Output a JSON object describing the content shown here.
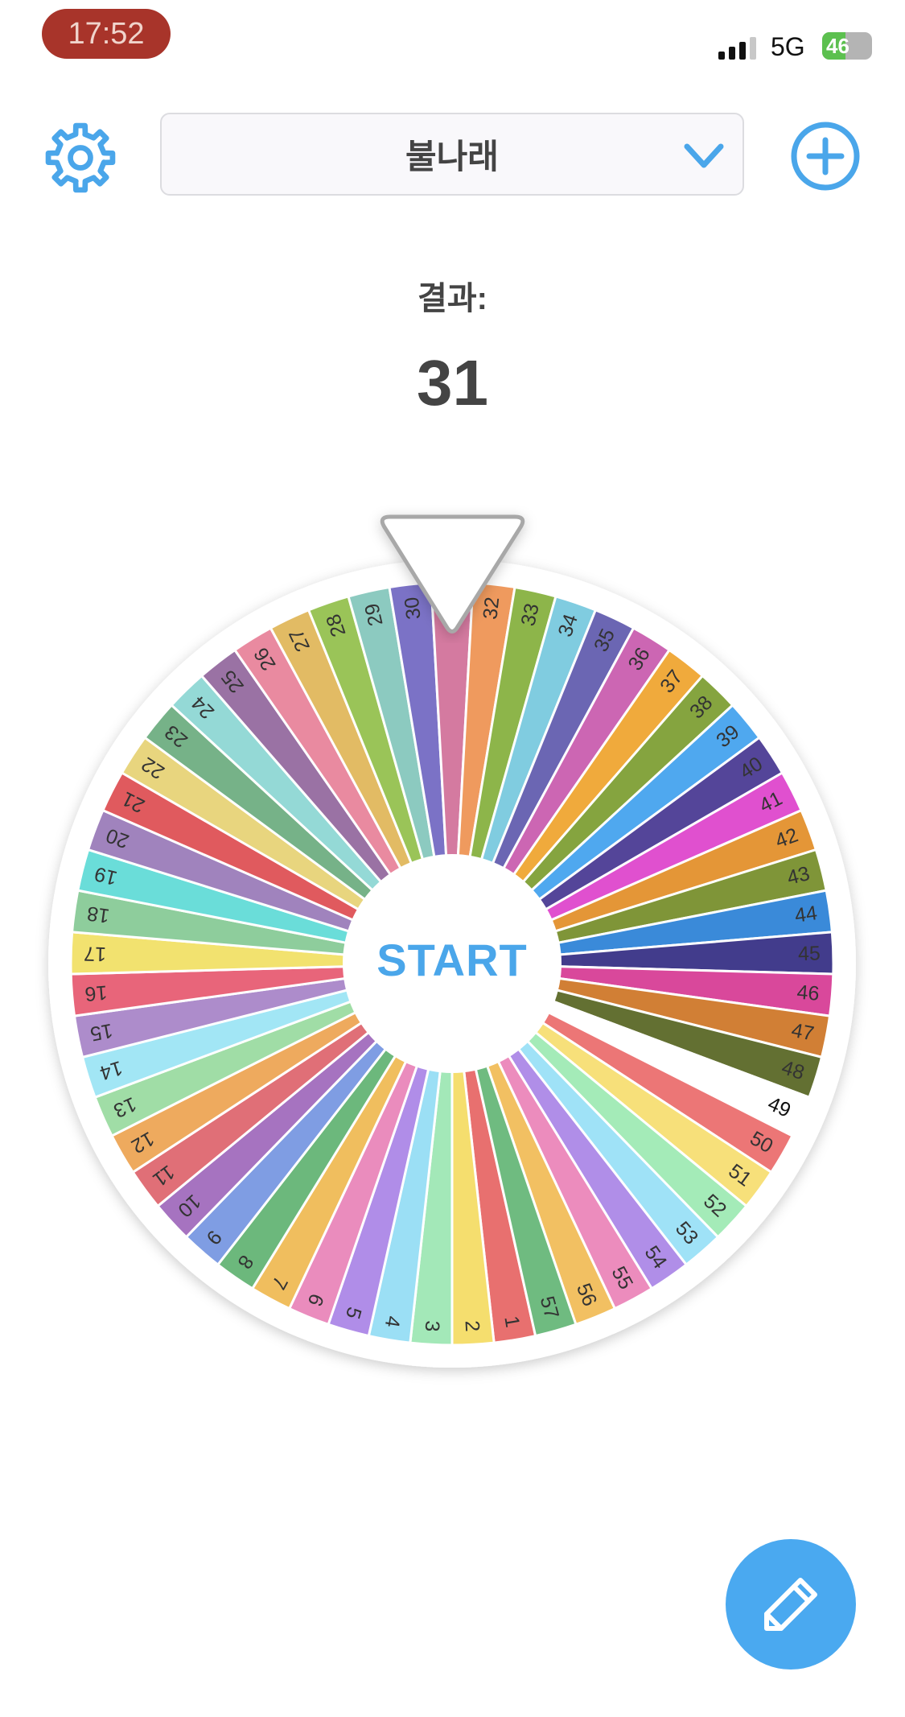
{
  "status_bar": {
    "time": "17:52",
    "network": "5G",
    "battery": "46",
    "battery_level_percent": 46,
    "battery_color": "#5cc04f"
  },
  "header": {
    "settings_icon": "gear-icon",
    "selected_list": "불나래",
    "dropdown_icon": "chevron-down-icon",
    "add_icon": "plus-circle-icon",
    "accent": "#4aa6ea"
  },
  "result": {
    "label": "결과:",
    "value": "31"
  },
  "wheel": {
    "center_label": "START",
    "pointer_at": "31",
    "segments": [
      {
        "label": "1",
        "color": "#e8706f"
      },
      {
        "label": "2",
        "color": "#f5de6e"
      },
      {
        "label": "3",
        "color": "#a3e8b8"
      },
      {
        "label": "4",
        "color": "#9bdff5"
      },
      {
        "label": "5",
        "color": "#b08de8"
      },
      {
        "label": "6",
        "color": "#ea8cbd"
      },
      {
        "label": "7",
        "color": "#f0be5e"
      },
      {
        "label": "8",
        "color": "#6cb87c"
      },
      {
        "label": "9",
        "color": "#7f9de3"
      },
      {
        "label": "10",
        "color": "#a673c0"
      },
      {
        "label": "11",
        "color": "#e06f77"
      },
      {
        "label": "12",
        "color": "#eeaa5e"
      },
      {
        "label": "13",
        "color": "#a0dda6"
      },
      {
        "label": "14",
        "color": "#a2e6f5"
      },
      {
        "label": "15",
        "color": "#ad8ccb"
      },
      {
        "label": "16",
        "color": "#e8657a"
      },
      {
        "label": "17",
        "color": "#f2e26f"
      },
      {
        "label": "18",
        "color": "#8ecd9c"
      },
      {
        "label": "19",
        "color": "#6addd9"
      },
      {
        "label": "20",
        "color": "#a083bd"
      },
      {
        "label": "21",
        "color": "#e05a5e"
      },
      {
        "label": "22",
        "color": "#e8d57e"
      },
      {
        "label": "23",
        "color": "#76b288"
      },
      {
        "label": "24",
        "color": "#94d9d6"
      },
      {
        "label": "25",
        "color": "#9a72a4"
      },
      {
        "label": "26",
        "color": "#e98aa0"
      },
      {
        "label": "27",
        "color": "#e2bb64"
      },
      {
        "label": "28",
        "color": "#9ac458"
      },
      {
        "label": "29",
        "color": "#8ccac0"
      },
      {
        "label": "30",
        "color": "#7b72c6"
      },
      {
        "label": "31",
        "color": "#d47aa0"
      },
      {
        "label": "32",
        "color": "#ef9a5e"
      },
      {
        "label": "33",
        "color": "#8db54a"
      },
      {
        "label": "34",
        "color": "#80cce0"
      },
      {
        "label": "35",
        "color": "#6b66b3"
      },
      {
        "label": "36",
        "color": "#cc66b3"
      },
      {
        "label": "37",
        "color": "#f0aa3c"
      },
      {
        "label": "38",
        "color": "#85a43f"
      },
      {
        "label": "39",
        "color": "#4fa8ef"
      },
      {
        "label": "40",
        "color": "#544599"
      },
      {
        "label": "41",
        "color": "#e050cf"
      },
      {
        "label": "42",
        "color": "#e49637"
      },
      {
        "label": "43",
        "color": "#7f9538"
      },
      {
        "label": "44",
        "color": "#3a8ad9"
      },
      {
        "label": "45",
        "color": "#423c8c"
      },
      {
        "label": "46",
        "color": "#d9489b"
      },
      {
        "label": "47",
        "color": "#d17f35"
      },
      {
        "label": "48",
        "color": "#637032"
      },
      {
        "label": "49",
        "color": "#ffffff"
      },
      {
        "label": "50",
        "color": "#ec7676"
      },
      {
        "label": "51",
        "color": "#f7e07a"
      },
      {
        "label": "52",
        "color": "#a4ebb8"
      },
      {
        "label": "53",
        "color": "#9fe2f7"
      },
      {
        "label": "54",
        "color": "#b08ee8"
      },
      {
        "label": "55",
        "color": "#ec8cbd"
      },
      {
        "label": "56",
        "color": "#f2c062"
      },
      {
        "label": "57",
        "color": "#6fbb80"
      }
    ]
  },
  "fab": {
    "icon": "pencil-icon",
    "color": "#4aa9f0"
  }
}
